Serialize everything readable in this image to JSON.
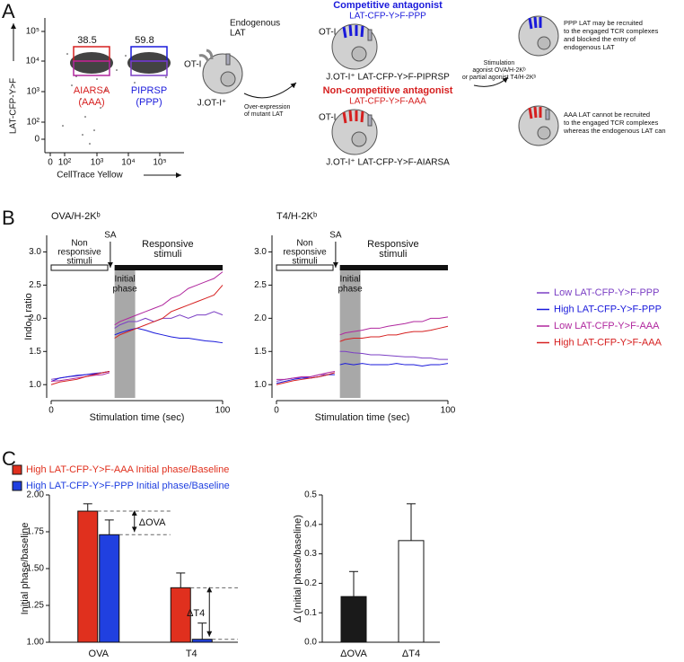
{
  "panel_labels": [
    "A",
    "B",
    "C"
  ],
  "panel_a": {
    "flow": {
      "y_label": "LAT-CFP-Y>F",
      "x_label": "CellTrace Yellow",
      "yticks": [
        "10⁵",
        "10⁴",
        "10³",
        "10²",
        "0"
      ],
      "xticks": [
        "0",
        "10²",
        "10³",
        "10⁴",
        "10⁵"
      ],
      "gates": [
        {
          "value": 38.5,
          "label": "AIARSA",
          "sublabel": "(AAA)"
        },
        {
          "value": 59.8,
          "label": "PIPRSP",
          "sublabel": "(PPP)"
        }
      ]
    },
    "parent": {
      "receptor": "OT-I",
      "endogenous": [
        "Endogenous",
        "LAT"
      ],
      "name": "J.OT-I⁺",
      "arrow_label": [
        "Over-expression",
        "of mutant LAT"
      ]
    },
    "competitive": {
      "title": "Competitive antagonist",
      "construct": "LAT-CFP-Y>F-PPP",
      "receptor": "OT-I",
      "name": "J.OT-I⁺ LAT-CFP-Y>F-PIPRSP"
    },
    "noncompetitive": {
      "title": "Non-competitive antagonist",
      "construct": "LAT-CFP-Y>F-AAA",
      "receptor": "OT-I",
      "name": "J.OT-I⁺ LAT-CFP-Y>F-AIARSA"
    },
    "stimulation": [
      "Stimulation",
      "agonist OVA/H-2Kᵇ",
      "or partial agonist T4/H-2Kᵇ"
    ],
    "outcome_ppp": [
      "PPP LAT may be recruited",
      "to the engaged TCR complexes",
      "and blocked the entry of",
      "endogenous LAT"
    ],
    "outcome_aaa": [
      "AAA LAT cannot be recruited",
      "to the engaged TCR complexes",
      "whereas the endogenous LAT can"
    ]
  },
  "chart_data": [
    {
      "type": "line",
      "title": "OVA/H-2Kᵇ",
      "y_label": "Indo-I ratio",
      "x_label": "Stimulation time (sec)",
      "annotations": {
        "non_responsive": [
          "Non",
          "responsive",
          "stimuli"
        ],
        "sa": "SA",
        "responsive": [
          "Responsive",
          "stimuli"
        ],
        "initial_phase": [
          "Initial",
          "phase"
        ]
      },
      "x": [
        0,
        5,
        10,
        15,
        20,
        25,
        30,
        34,
        35,
        37,
        40,
        45,
        50,
        55,
        60,
        65,
        70,
        75,
        80,
        85,
        90,
        95,
        100
      ],
      "xlim": [
        0,
        100
      ],
      "xticks": [
        0,
        100
      ],
      "ylim": [
        0.8,
        3.25
      ],
      "yticks": [
        {
          "value": 1,
          "label": "1.0"
        },
        1.5,
        {
          "value": 2,
          "label": "2.0"
        },
        2.5,
        {
          "value": 3,
          "label": "3.0"
        }
      ],
      "series": [
        {
          "color": "#7b3fc4",
          "values": [
            1.08,
            1.1,
            1.12,
            1.13,
            1.15,
            1.17,
            1.18,
            1.2,
            null,
            1.85,
            1.9,
            1.95,
            1.95,
            2.0,
            1.95,
            2.0,
            2.0,
            2.05,
            2.0,
            2.05,
            2.05,
            2.1,
            2.05
          ]
        },
        {
          "color": "#1a1adb",
          "values": [
            1.05,
            1.1,
            1.12,
            1.14,
            1.15,
            1.16,
            1.18,
            1.2,
            null,
            1.75,
            1.78,
            1.82,
            1.85,
            1.82,
            1.78,
            1.75,
            1.72,
            1.7,
            1.7,
            1.68,
            1.66,
            1.65,
            1.63
          ]
        },
        {
          "color": "#b0279e",
          "values": [
            1.05,
            1.06,
            1.08,
            1.1,
            1.12,
            1.14,
            1.15,
            1.18,
            null,
            1.9,
            1.95,
            2.0,
            2.05,
            2.1,
            2.15,
            2.2,
            2.3,
            2.35,
            2.45,
            2.5,
            2.55,
            2.6,
            2.7
          ]
        },
        {
          "color": "#d62020",
          "values": [
            1.0,
            1.04,
            1.06,
            1.08,
            1.12,
            1.15,
            1.18,
            1.2,
            null,
            1.7,
            1.75,
            1.8,
            1.85,
            1.9,
            1.95,
            2.0,
            2.1,
            2.15,
            2.2,
            2.25,
            2.3,
            2.35,
            2.5
          ]
        }
      ]
    },
    {
      "type": "line",
      "title": "T4/H-2Kᵇ",
      "x_label": "Stimulation time (sec)",
      "annotations": {
        "non_responsive": [
          "Non",
          "responsive",
          "stimuli"
        ],
        "sa": "SA",
        "responsive": [
          "Responsive",
          "stimuli"
        ],
        "initial_phase": [
          "Initial",
          "phase"
        ]
      },
      "x": [
        0,
        5,
        10,
        15,
        20,
        25,
        30,
        34,
        35,
        37,
        40,
        45,
        50,
        55,
        60,
        65,
        70,
        75,
        80,
        85,
        90,
        95,
        100
      ],
      "xlim": [
        0,
        100
      ],
      "xticks": [
        0,
        100
      ],
      "ylim": [
        0.8,
        3.25
      ],
      "yticks": [
        {
          "value": 1,
          "label": "1.0"
        },
        1.5,
        {
          "value": 2,
          "label": "2.0"
        },
        2.5,
        {
          "value": 3,
          "label": "3.0"
        }
      ],
      "series": [
        {
          "name": "Low LAT-CFP-Y>F-PPP",
          "color": "#7b3fc4",
          "values": [
            1.05,
            1.08,
            1.1,
            1.1,
            1.12,
            1.15,
            1.15,
            1.18,
            null,
            1.5,
            1.5,
            1.48,
            1.47,
            1.45,
            1.45,
            1.44,
            1.43,
            1.42,
            1.42,
            1.4,
            1.4,
            1.38,
            1.38
          ]
        },
        {
          "name": "High LAT-CFP-Y>F-PPP",
          "color": "#1a1adb",
          "values": [
            1.02,
            1.05,
            1.08,
            1.1,
            1.1,
            1.12,
            1.15,
            1.15,
            null,
            1.3,
            1.32,
            1.3,
            1.32,
            1.3,
            1.3,
            1.3,
            1.32,
            1.3,
            1.3,
            1.28,
            1.3,
            1.3,
            1.32
          ]
        },
        {
          "name": "Low LAT-CFP-Y>F-AAA",
          "color": "#b0279e",
          "values": [
            1.08,
            1.08,
            1.1,
            1.12,
            1.12,
            1.15,
            1.18,
            1.2,
            null,
            1.75,
            1.78,
            1.8,
            1.82,
            1.85,
            1.85,
            1.88,
            1.9,
            1.92,
            1.95,
            1.95,
            2.0,
            2.0,
            2.02
          ]
        },
        {
          "name": "High LAT-CFP-Y>F-AAA",
          "color": "#d62020",
          "values": [
            1.0,
            1.03,
            1.06,
            1.08,
            1.1,
            1.12,
            1.15,
            1.18,
            null,
            1.65,
            1.68,
            1.7,
            1.7,
            1.72,
            1.72,
            1.75,
            1.75,
            1.78,
            1.8,
            1.8,
            1.82,
            1.85,
            1.88
          ]
        }
      ]
    },
    {
      "type": "bar",
      "y_label": "Initial phase/baseline",
      "categories": [
        "OVA",
        "T4"
      ],
      "annotations": [
        "ΔOVA",
        "ΔT4"
      ],
      "ylim": [
        1.0,
        2.0
      ],
      "yticks": [
        {
          "value": 1,
          "label": "1.00"
        },
        1.25,
        {
          "value": 1.5,
          "label": "1.50"
        },
        1.75,
        {
          "value": 2,
          "label": "2.00"
        }
      ],
      "series": [
        {
          "name": "High LAT-CFP-Y>F-AAA Initial phase/Baseline",
          "color": "#e0301e",
          "values": [
            1.89,
            1.37
          ],
          "errors": [
            0.05,
            0.1
          ]
        },
        {
          "name": "High LAT-CFP-Y>F-PPP Initial phase/Baseline",
          "color": "#2040e0",
          "values": [
            1.73,
            1.02
          ],
          "errors": [
            0.1,
            0.11
          ]
        }
      ]
    },
    {
      "type": "bar",
      "y_label": "Δ (Initial phase/baseline)",
      "categories": [
        "ΔOVA",
        "ΔT4"
      ],
      "values": [
        0.155,
        0.345
      ],
      "errors": [
        0.085,
        0.125
      ],
      "colors": [
        "#1a1a1a",
        "#ffffff"
      ],
      "ylim": [
        0,
        0.5
      ],
      "yticks": [
        {
          "value": 0,
          "label": "0.0"
        },
        0.1,
        0.2,
        0.3,
        0.4,
        0.5
      ]
    }
  ]
}
